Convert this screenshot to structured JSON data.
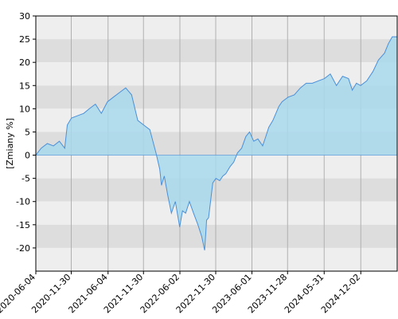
{
  "chart_data": {
    "type": "area",
    "xlabel": "",
    "ylabel": "[Zmiany %]",
    "ylim": [
      -25,
      30
    ],
    "y_ticks": [
      30,
      25,
      20,
      15,
      10,
      5,
      0,
      -5,
      -10,
      -15,
      -20
    ],
    "x_start": "2020-06-04",
    "x_end": "2025-06-04",
    "x_ticks": [
      "2020-06-04",
      "2020-11-30",
      "2021-06-04",
      "2021-11-30",
      "2022-06-02",
      "2022-11-30",
      "2023-06-01",
      "2023-11-28",
      "2024-05-31",
      "2024-12-02"
    ],
    "grid": true,
    "colors": {
      "line": "#4a90d9",
      "fill": "#a8d8ec",
      "band_light": "#eeeeee",
      "band_dark": "#dddddd",
      "gridline": "#b0b0b0",
      "axis": "#000000"
    },
    "series": [
      {
        "x": [
          "2020-06-04",
          "2020-07-01",
          "2020-08-01",
          "2020-09-01",
          "2020-10-01",
          "2020-10-28",
          "2020-11-10",
          "2020-12-01",
          "2021-01-01",
          "2021-02-01",
          "2021-03-01",
          "2021-04-01",
          "2021-05-01",
          "2021-06-01",
          "2021-07-01",
          "2021-08-01",
          "2021-09-01",
          "2021-10-01",
          "2021-11-01",
          "2021-12-01",
          "2022-01-01",
          "2022-02-01",
          "2022-02-20",
          "2022-03-01",
          "2022-03-15",
          "2022-04-01",
          "2022-04-20",
          "2022-05-10",
          "2022-06-01",
          "2022-06-15",
          "2022-07-01",
          "2022-07-20",
          "2022-08-10",
          "2022-09-01",
          "2022-09-20",
          "2022-10-05",
          "2022-10-15",
          "2022-10-25",
          "2022-11-15",
          "2022-12-01",
          "2022-12-20",
          "2023-01-05",
          "2023-01-20",
          "2023-02-10",
          "2023-03-01",
          "2023-03-20",
          "2023-04-10",
          "2023-05-01",
          "2023-05-20",
          "2023-06-10",
          "2023-07-01",
          "2023-07-25",
          "2023-08-10",
          "2023-08-25",
          "2023-09-15",
          "2023-10-15",
          "2023-10-31",
          "2023-11-15",
          "2023-12-01",
          "2024-01-01",
          "2024-02-01",
          "2024-03-01",
          "2024-04-01",
          "2024-05-01",
          "2024-06-01",
          "2024-07-01",
          "2024-08-01",
          "2024-09-01",
          "2024-10-01",
          "2024-10-20",
          "2024-11-10",
          "2024-12-01",
          "2025-01-01",
          "2025-02-01",
          "2025-03-01",
          "2025-04-01",
          "2025-04-20",
          "2025-05-10",
          "2025-06-04"
        ],
        "values": [
          0,
          1.5,
          2.5,
          2.0,
          3.0,
          1.5,
          6.5,
          8.0,
          8.5,
          9.0,
          10.0,
          11.0,
          9.0,
          11.5,
          12.5,
          13.5,
          14.5,
          13.0,
          7.5,
          6.5,
          5.5,
          0.5,
          -3.0,
          -6.5,
          -4.5,
          -8.5,
          -12.5,
          -10.0,
          -15.5,
          -12.0,
          -12.5,
          -10.0,
          -12.5,
          -15.0,
          -17.5,
          -20.5,
          -14.0,
          -13.5,
          -6.0,
          -5.0,
          -5.5,
          -4.5,
          -4.0,
          -2.5,
          -1.5,
          0.5,
          1.5,
          4.0,
          5.0,
          3.0,
          3.5,
          2.0,
          4.0,
          6.0,
          7.5,
          10.5,
          11.5,
          12.0,
          12.5,
          13.0,
          14.5,
          15.5,
          15.5,
          16.0,
          16.5,
          17.5,
          15.0,
          17.0,
          16.5,
          14.0,
          15.5,
          15.0,
          16.0,
          18.0,
          20.5,
          22.0,
          24.0,
          25.5,
          25.5
        ]
      }
    ]
  }
}
